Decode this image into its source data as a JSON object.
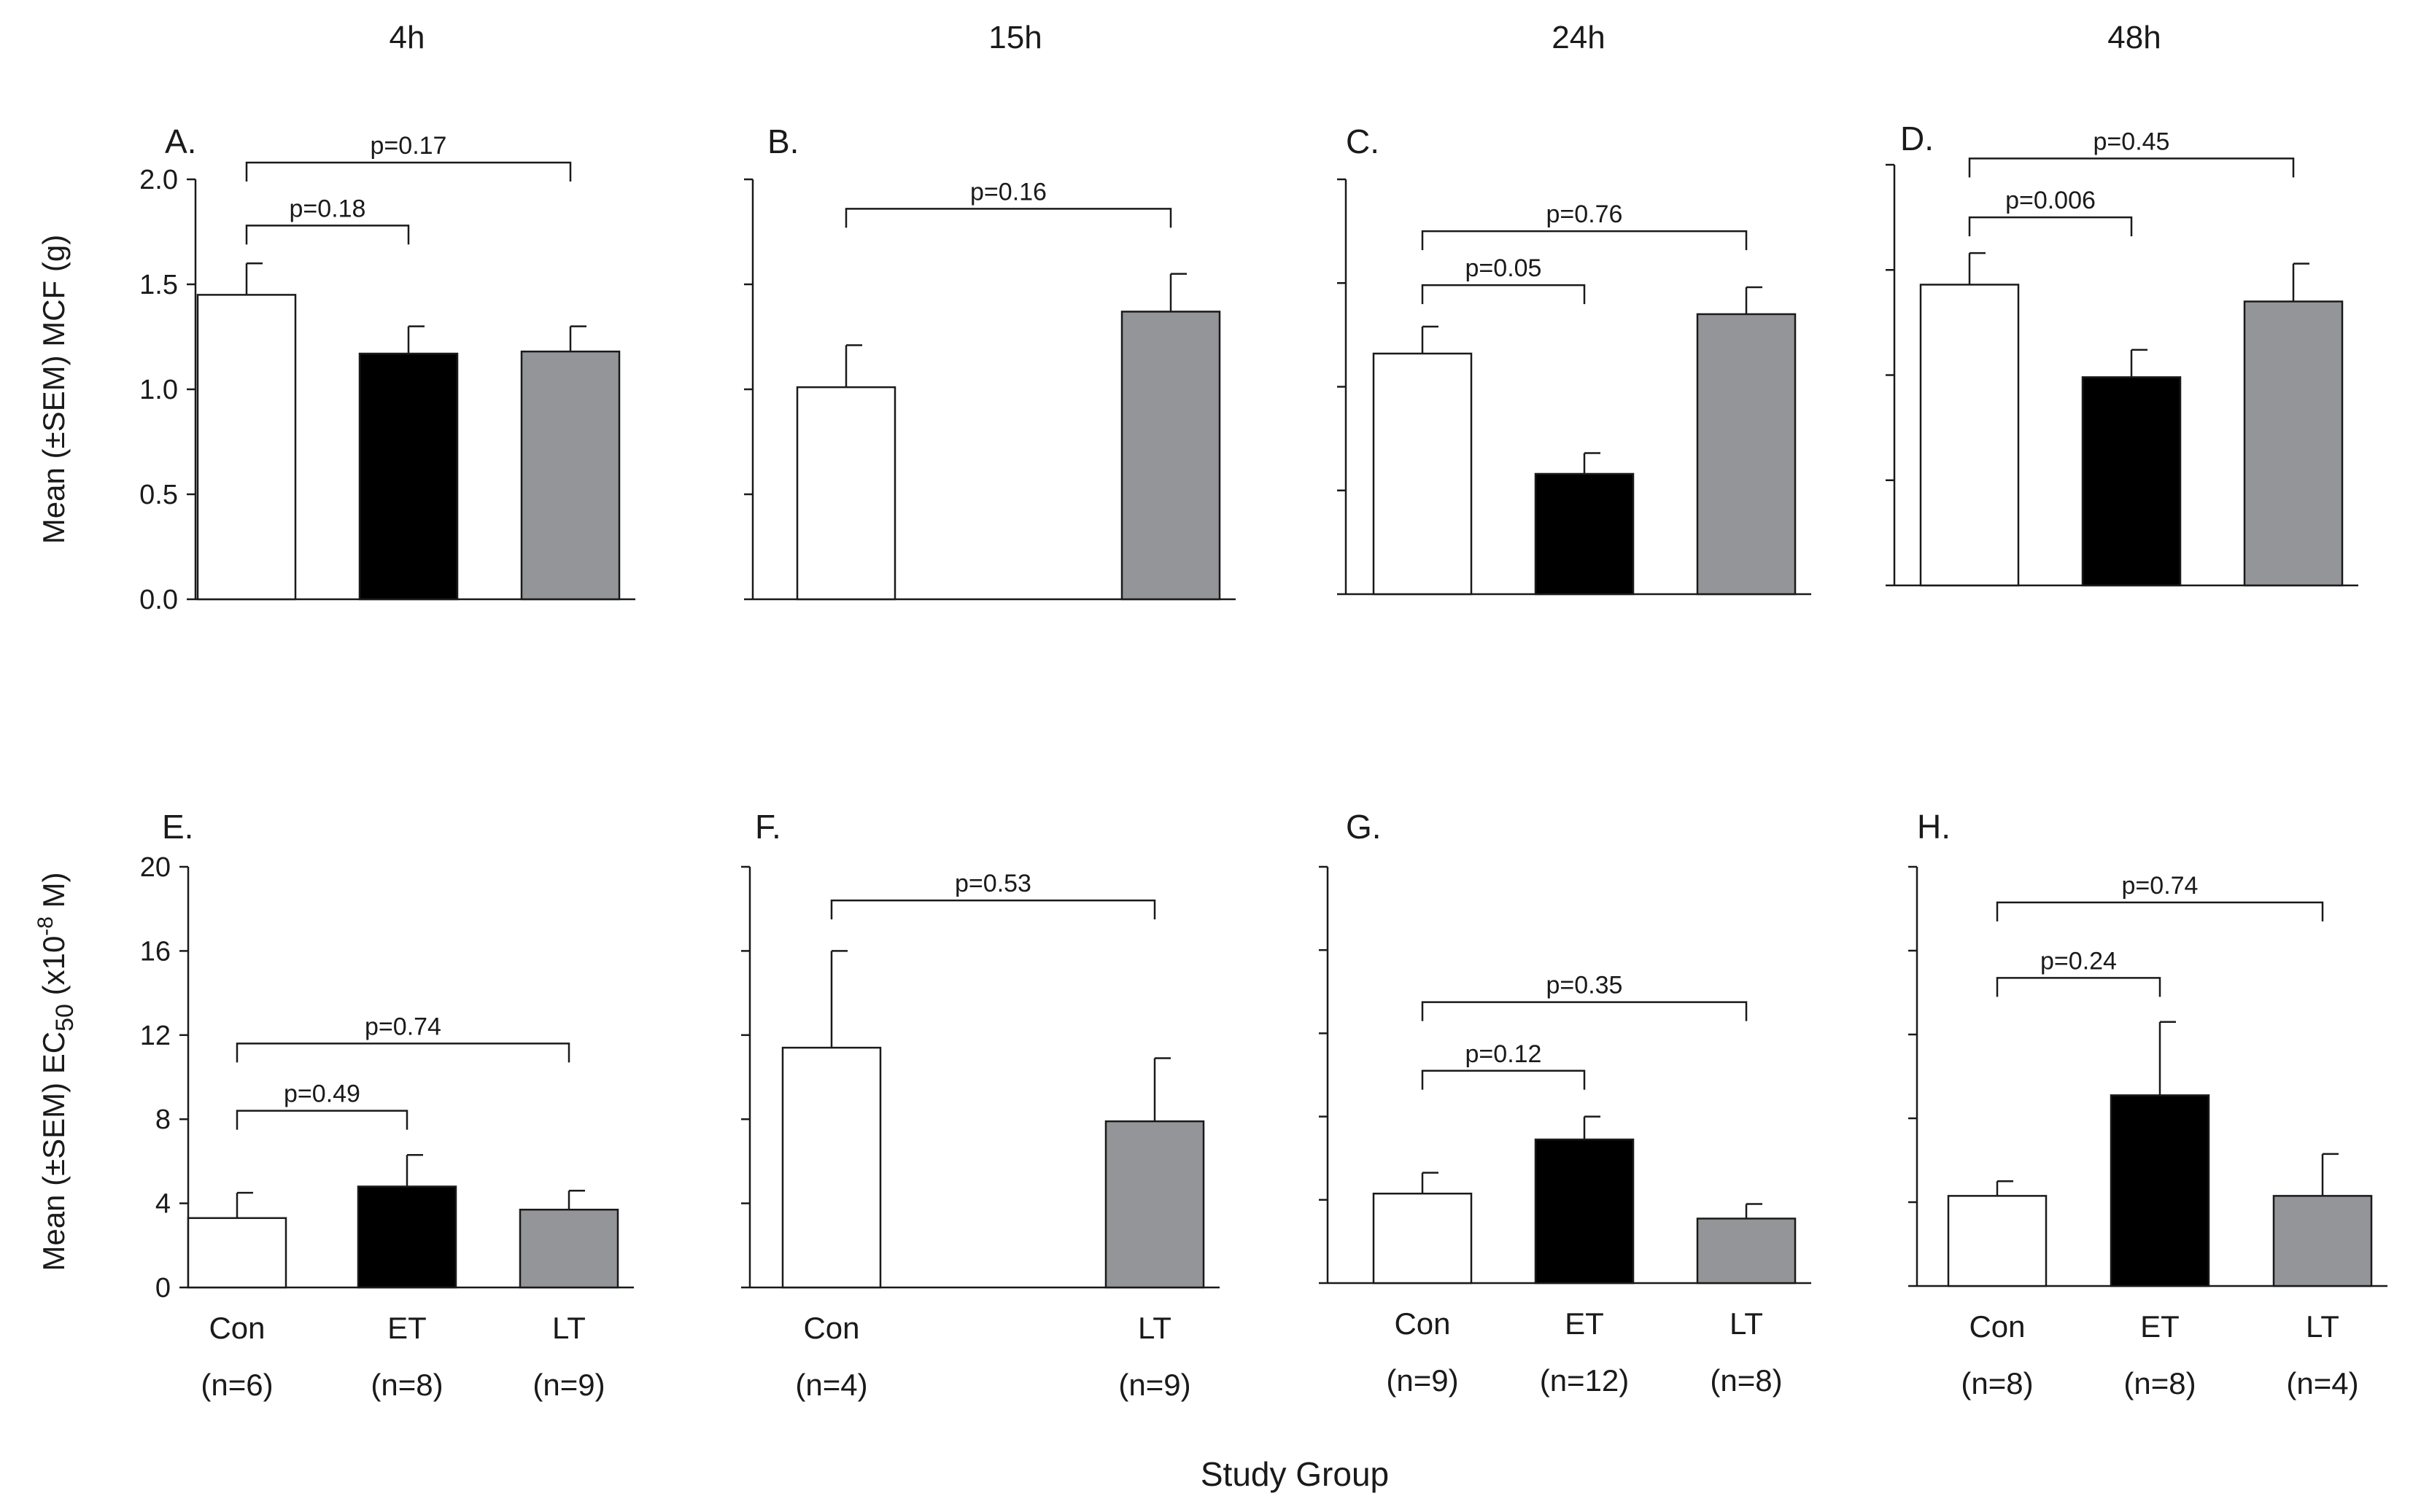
{
  "time_labels": [
    "4h",
    "15h",
    "24h",
    "48h"
  ],
  "x_axis_title": "Study Group",
  "y_axis_top": "Mean (±SEM) MCF (g)",
  "y_axis_bottom": {
    "prefix": "Mean (±SEM) EC",
    "sub": "50",
    "mid": " (x10",
    "sup": "-8",
    "suffix": " M)"
  },
  "colors": {
    "Con": "#ffffff",
    "ET": "#000000",
    "LT": "#939598"
  },
  "chart_data": [
    {
      "type": "bar",
      "panel": "A.",
      "time": "4h",
      "ylim": [
        0,
        2.0
      ],
      "yticks": [
        "0.0",
        "0.5",
        "1.0",
        "1.5",
        "2.0"
      ],
      "ytick_values": [
        0,
        0.5,
        1.0,
        1.5,
        2.0
      ],
      "show_tick_labels": true,
      "groups": [
        {
          "name": "Con",
          "n": "(n=6)",
          "value": 1.45,
          "sem": 0.15
        },
        {
          "name": "ET",
          "n": "(n=8)",
          "value": 1.17,
          "sem": 0.13
        },
        {
          "name": "LT",
          "n": "(n=9)",
          "value": 1.18,
          "sem": 0.12
        }
      ],
      "brackets": [
        {
          "from": 0,
          "to": 1,
          "label": "p=0.18",
          "y": 1.78
        },
        {
          "from": 0,
          "to": 2,
          "label": "p=0.17",
          "y": 2.08
        }
      ]
    },
    {
      "type": "bar",
      "panel": "B.",
      "time": "15h",
      "ylim": [
        0,
        2.0
      ],
      "yticks": [
        "0.0",
        "0.5",
        "1.0",
        "1.5",
        "2.0"
      ],
      "ytick_values": [
        0,
        0.5,
        1.0,
        1.5,
        2.0
      ],
      "show_tick_labels": false,
      "groups": [
        {
          "name": "Con",
          "n": "(n=4)",
          "value": 1.01,
          "sem": 0.2
        },
        {
          "name": "LT",
          "n": "(n=9)",
          "value": 1.37,
          "sem": 0.18
        }
      ],
      "brackets": [
        {
          "from": 0,
          "to": 1,
          "label": "p=0.16",
          "y": 1.86
        }
      ]
    },
    {
      "type": "bar",
      "panel": "C.",
      "time": "24h",
      "ylim": [
        0,
        2.0
      ],
      "yticks": [
        "0.0",
        "0.5",
        "1.0",
        "1.5",
        "2.0"
      ],
      "ytick_values": [
        0,
        0.5,
        1.0,
        1.5,
        2.0
      ],
      "show_tick_labels": false,
      "groups": [
        {
          "name": "Con",
          "n": "(n=9)",
          "value": 1.16,
          "sem": 0.13
        },
        {
          "name": "ET",
          "n": "(n=12)",
          "value": 0.58,
          "sem": 0.1
        },
        {
          "name": "LT",
          "n": "(n=8)",
          "value": 1.35,
          "sem": 0.13
        }
      ],
      "brackets": [
        {
          "from": 0,
          "to": 1,
          "label": "p=0.05",
          "y": 1.49
        },
        {
          "from": 0,
          "to": 2,
          "label": "p=0.76",
          "y": 1.75
        }
      ]
    },
    {
      "type": "bar",
      "panel": "D.",
      "time": "48h",
      "ylim": [
        0,
        2.0
      ],
      "yticks": [
        "0.0",
        "0.5",
        "1.0",
        "1.5",
        "2.0"
      ],
      "ytick_values": [
        0,
        0.5,
        1.0,
        1.5,
        2.0
      ],
      "show_tick_labels": false,
      "groups": [
        {
          "name": "Con",
          "n": "(n=8)",
          "value": 1.43,
          "sem": 0.15
        },
        {
          "name": "ET",
          "n": "(n=8)",
          "value": 0.99,
          "sem": 0.13
        },
        {
          "name": "LT",
          "n": "(n=4)",
          "value": 1.35,
          "sem": 0.18
        }
      ],
      "brackets": [
        {
          "from": 0,
          "to": 1,
          "label": "p=0.006",
          "y": 1.75
        },
        {
          "from": 0,
          "to": 2,
          "label": "p=0.45",
          "y": 2.03
        }
      ]
    },
    {
      "type": "bar",
      "panel": "E.",
      "time": "4h",
      "ylim": [
        0,
        20
      ],
      "yticks": [
        "0",
        "4",
        "8",
        "12",
        "16",
        "20"
      ],
      "ytick_values": [
        0,
        4,
        8,
        12,
        16,
        20
      ],
      "show_tick_labels": true,
      "groups": [
        {
          "name": "Con",
          "n": "(n=6)",
          "value": 3.3,
          "sem": 1.2
        },
        {
          "name": "ET",
          "n": "(n=8)",
          "value": 4.8,
          "sem": 1.5
        },
        {
          "name": "LT",
          "n": "(n=9)",
          "value": 3.7,
          "sem": 0.9
        }
      ],
      "brackets": [
        {
          "from": 0,
          "to": 1,
          "label": "p=0.49",
          "y": 8.4
        },
        {
          "from": 0,
          "to": 2,
          "label": "p=0.74",
          "y": 11.6
        }
      ]
    },
    {
      "type": "bar",
      "panel": "F.",
      "time": "15h",
      "ylim": [
        0,
        20
      ],
      "yticks": [
        "0",
        "4",
        "8",
        "12",
        "16",
        "20"
      ],
      "ytick_values": [
        0,
        4,
        8,
        12,
        16,
        20
      ],
      "show_tick_labels": false,
      "groups": [
        {
          "name": "Con",
          "n": "(n=4)",
          "value": 11.4,
          "sem": 4.6
        },
        {
          "name": "LT",
          "n": "(n=9)",
          "value": 7.9,
          "sem": 3.0
        }
      ],
      "brackets": [
        {
          "from": 0,
          "to": 1,
          "label": "p=0.53",
          "y": 18.4
        }
      ]
    },
    {
      "type": "bar",
      "panel": "G.",
      "time": "24h",
      "ylim": [
        0,
        20
      ],
      "yticks": [
        "0",
        "4",
        "8",
        "12",
        "16",
        "20"
      ],
      "ytick_values": [
        0,
        4,
        8,
        12,
        16,
        20
      ],
      "show_tick_labels": false,
      "groups": [
        {
          "name": "Con",
          "n": "(n=9)",
          "value": 4.3,
          "sem": 1.0
        },
        {
          "name": "ET",
          "n": "(n=12)",
          "value": 6.9,
          "sem": 1.1
        },
        {
          "name": "LT",
          "n": "(n=8)",
          "value": 3.1,
          "sem": 0.7
        }
      ],
      "brackets": [
        {
          "from": 0,
          "to": 1,
          "label": "p=0.12",
          "y": 10.2
        },
        {
          "from": 0,
          "to": 2,
          "label": "p=0.35",
          "y": 13.5
        }
      ]
    },
    {
      "type": "bar",
      "panel": "H.",
      "time": "48h",
      "ylim": [
        0,
        20
      ],
      "yticks": [
        "0",
        "4",
        "8",
        "12",
        "16",
        "20"
      ],
      "ytick_values": [
        0,
        4,
        8,
        12,
        16,
        20
      ],
      "show_tick_labels": false,
      "groups": [
        {
          "name": "Con",
          "n": "(n=8)",
          "value": 4.3,
          "sem": 0.7
        },
        {
          "name": "ET",
          "n": "(n=8)",
          "value": 9.1,
          "sem": 3.5
        },
        {
          "name": "LT",
          "n": "(n=4)",
          "value": 4.3,
          "sem": 2.0
        }
      ],
      "brackets": [
        {
          "from": 0,
          "to": 1,
          "label": "p=0.24",
          "y": 14.7
        },
        {
          "from": 0,
          "to": 2,
          "label": "p=0.74",
          "y": 18.3
        }
      ]
    }
  ]
}
